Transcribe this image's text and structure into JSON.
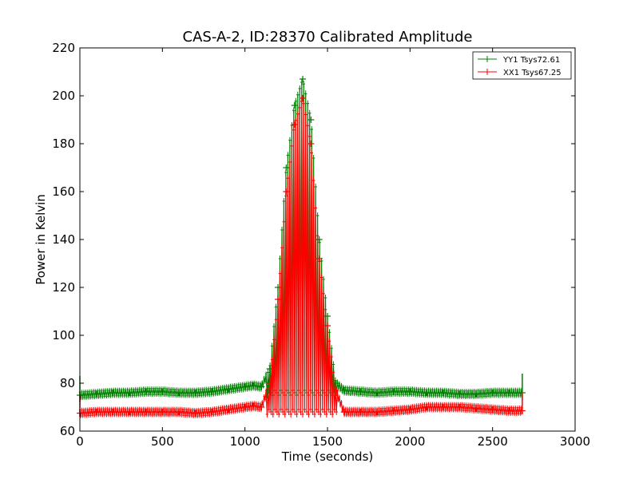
{
  "chart_data": {
    "type": "line",
    "title": "CAS-A-2, ID:28370 Calibrated Amplitude",
    "xlabel": "Time (seconds)",
    "ylabel": "Power in Kelvin",
    "xlim": [
      0,
      3000
    ],
    "ylim": [
      60,
      220
    ],
    "xticks": [
      "0",
      "500",
      "1000",
      "1500",
      "2000",
      "2500",
      "3000"
    ],
    "yticks": [
      "60",
      "80",
      "100",
      "120",
      "140",
      "160",
      "180",
      "200",
      "220"
    ],
    "grid": false,
    "legend_position": "top-right",
    "series": [
      {
        "name": "YY1 Tsys72.61",
        "color": "#008000",
        "marker": "+",
        "x": [
          0,
          100,
          200,
          300,
          400,
          500,
          600,
          700,
          800,
          900,
          1000,
          1050,
          1100,
          1150,
          1200,
          1250,
          1300,
          1350,
          1400,
          1450,
          1500,
          1550,
          1600,
          1700,
          1800,
          1900,
          2000,
          2100,
          2200,
          2300,
          2400,
          2500,
          2600,
          2680
        ],
        "y": [
          75,
          75.5,
          76,
          76,
          76.5,
          76.5,
          76,
          76,
          76.5,
          77.5,
          78.5,
          79,
          78.5,
          86,
          120,
          170,
          196,
          207,
          190,
          140,
          108,
          80,
          77,
          76.5,
          76,
          76.5,
          76.5,
          76,
          76,
          75.5,
          75.5,
          76,
          76,
          76
        ]
      },
      {
        "name": "XX1 Tsys67.25",
        "color": "#ff0000",
        "marker": "+",
        "x": [
          0,
          100,
          200,
          300,
          400,
          500,
          600,
          700,
          800,
          900,
          1000,
          1050,
          1100,
          1150,
          1200,
          1250,
          1300,
          1350,
          1400,
          1450,
          1500,
          1550,
          1600,
          1700,
          1800,
          1900,
          2000,
          2100,
          2200,
          2300,
          2400,
          2500,
          2600,
          2680
        ],
        "y": [
          67.5,
          68,
          68,
          68,
          68,
          68,
          68,
          67.5,
          68,
          69,
          70,
          70.5,
          70,
          80,
          115,
          160,
          188,
          199,
          180,
          132,
          104,
          77,
          68,
          68,
          68,
          68.5,
          69,
          70,
          70,
          70,
          69.5,
          69,
          68.5,
          68.5
        ]
      }
    ]
  }
}
